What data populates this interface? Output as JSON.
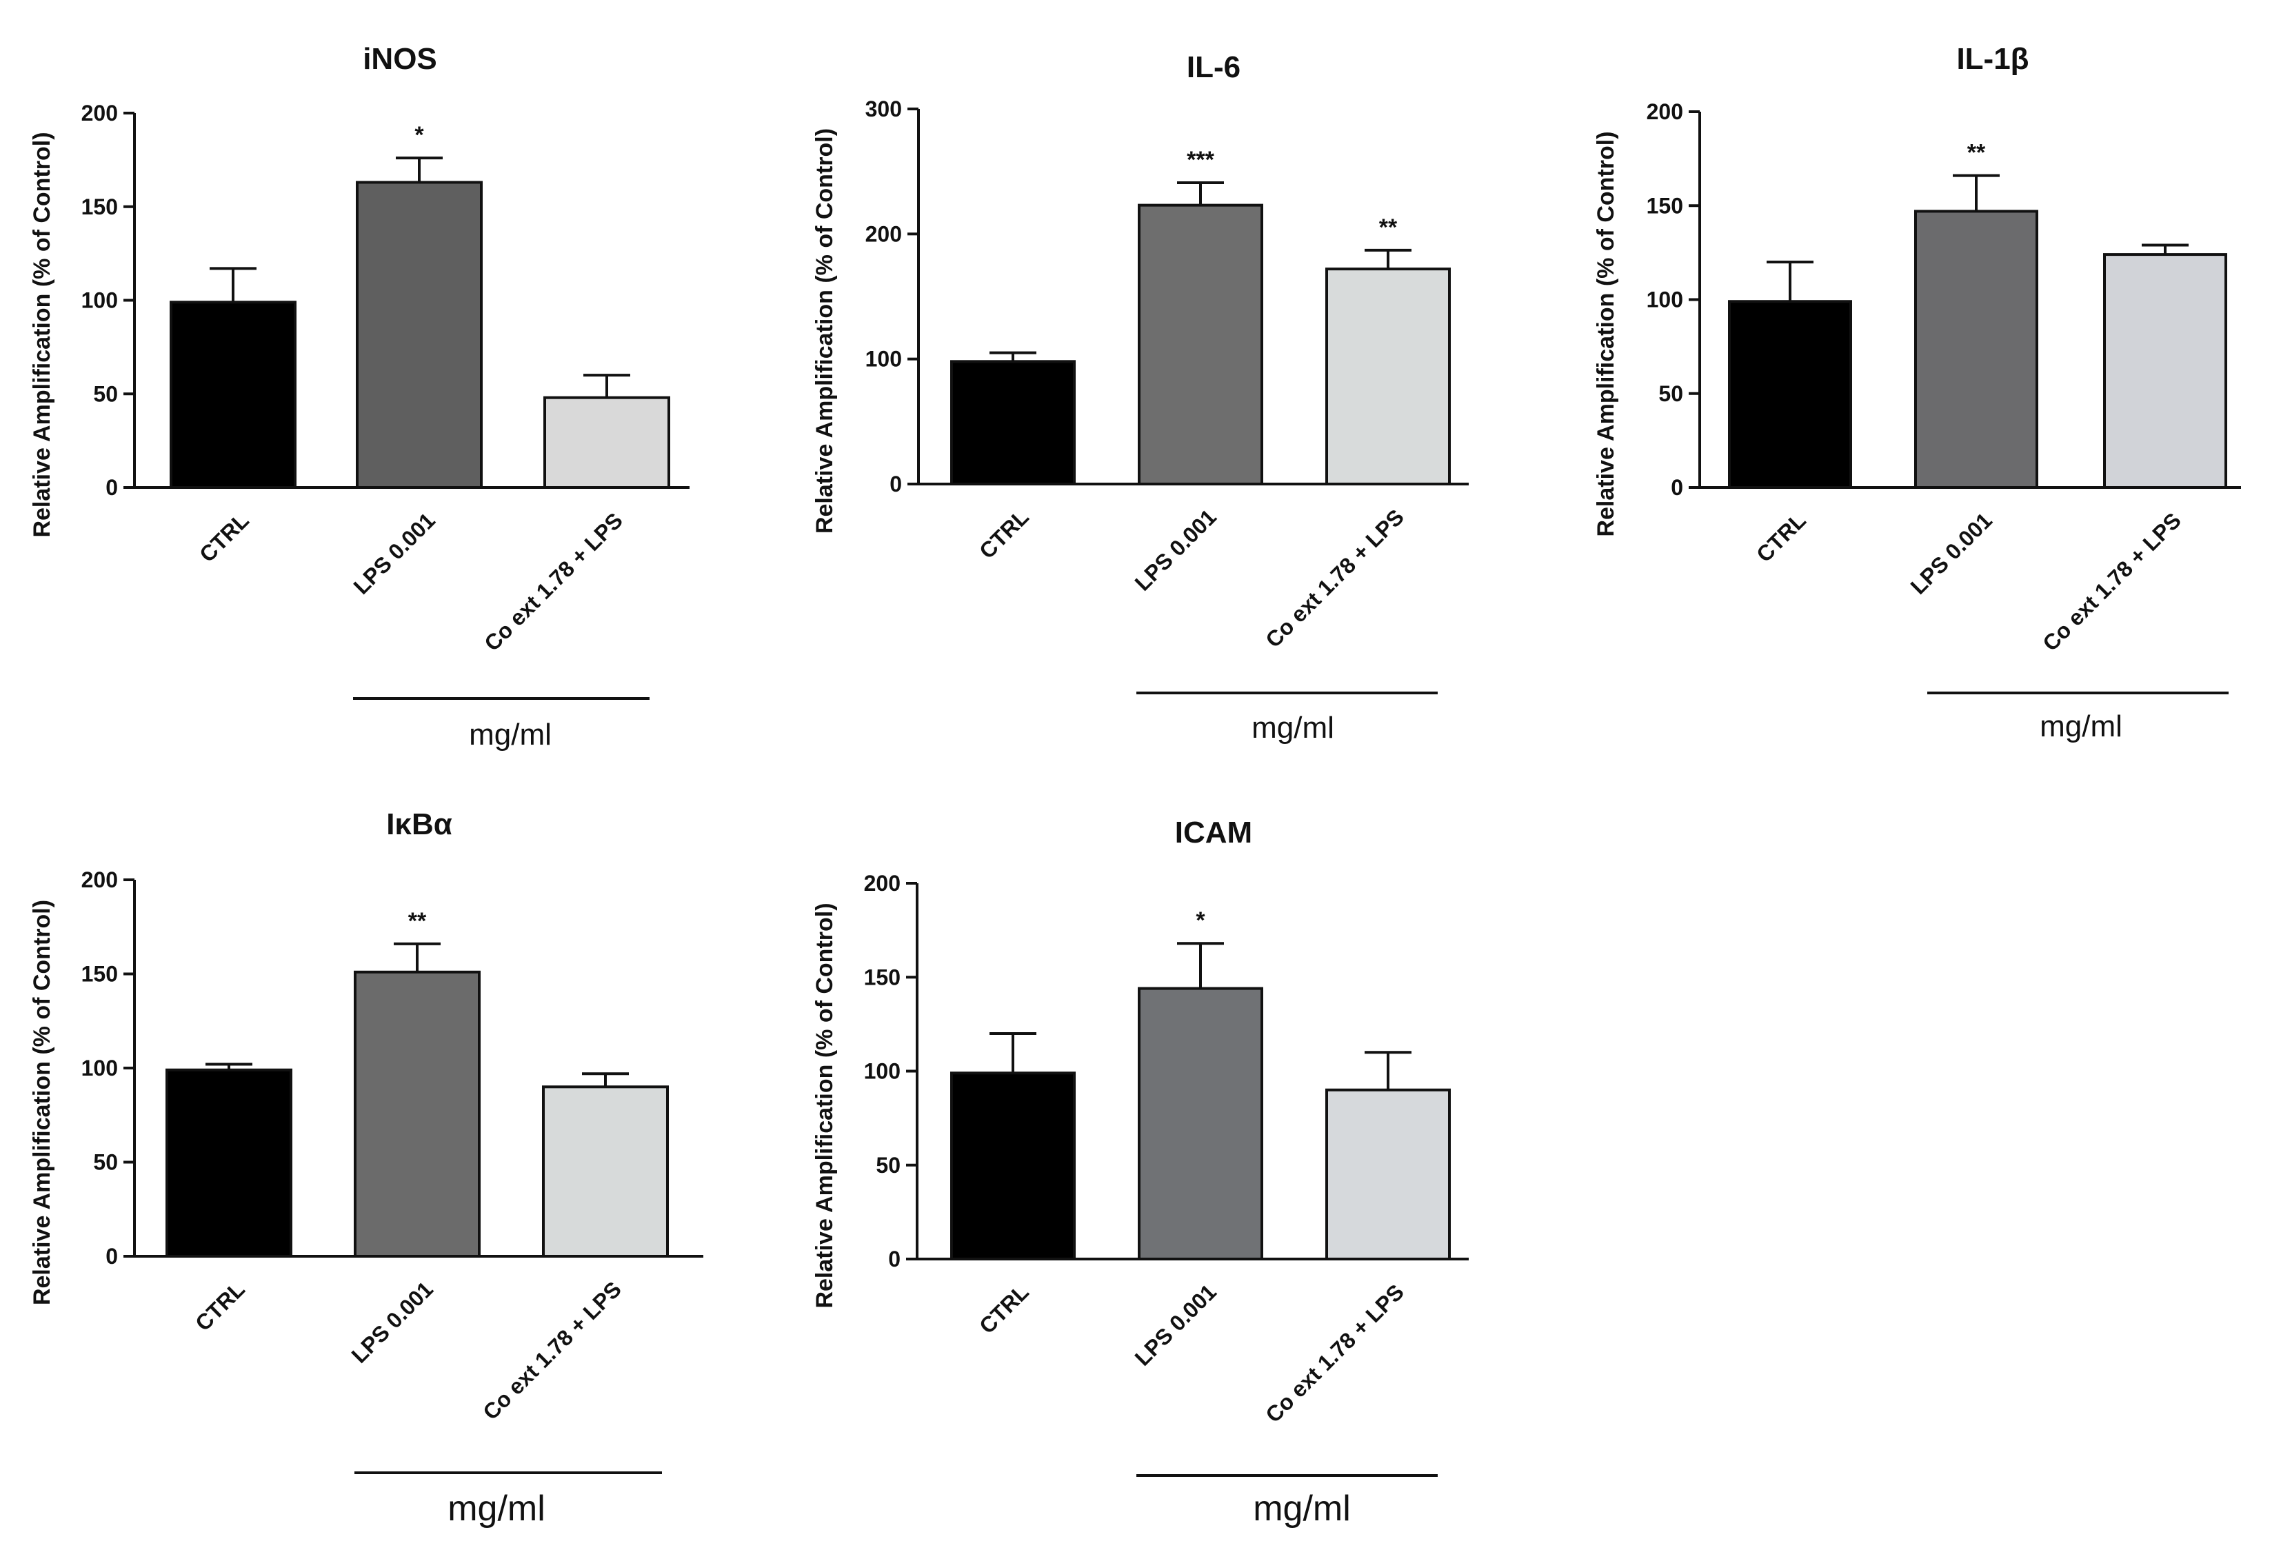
{
  "chart_data": [
    {
      "type": "bar",
      "title": "iNOS",
      "ylabel": "Relative Amplification (% of Control)",
      "xlabel": "",
      "ylim": [
        0,
        200
      ],
      "yticks": [
        "0",
        "50",
        "100",
        "150",
        "200"
      ],
      "categories": [
        "CTRL",
        "LPS 0.001",
        "Co ext 1.78 + LPS"
      ],
      "values": [
        99,
        163,
        48
      ],
      "errors": [
        18,
        13,
        12
      ],
      "colors": [
        "#000000",
        "#5f5f5f",
        "#d9d9d9"
      ],
      "significance": [
        "",
        "*",
        ""
      ],
      "unit_label": "mg/ml"
    },
    {
      "type": "bar",
      "title": "IL-6",
      "ylabel": "Relative Amplification (% of Control)",
      "xlabel": "",
      "ylim": [
        0,
        300
      ],
      "yticks": [
        "0",
        "100",
        "200",
        "300"
      ],
      "categories": [
        "CTRL",
        "LPS 0.001",
        "Co ext 1.78 + LPS"
      ],
      "values": [
        98,
        223,
        172
      ],
      "errors": [
        7,
        18,
        15
      ],
      "colors": [
        "#000000",
        "#6e6e6e",
        "#d8dbdb"
      ],
      "significance": [
        "",
        "***",
        "**"
      ],
      "unit_label": "mg/ml"
    },
    {
      "type": "bar",
      "title": "IL-1β",
      "ylabel": "Relative Amplification (% of Control)",
      "xlabel": "",
      "ylim": [
        0,
        200
      ],
      "yticks": [
        "0",
        "50",
        "100",
        "150",
        "200"
      ],
      "categories": [
        "CTRL",
        "LPS 0.001",
        "Co ext 1.78 + LPS"
      ],
      "values": [
        99,
        147,
        124
      ],
      "errors": [
        21,
        19,
        5
      ],
      "colors": [
        "#000000",
        "#6b6b6d",
        "#d1d3d8"
      ],
      "significance": [
        "",
        "**",
        ""
      ],
      "unit_label": "mg/ml"
    },
    {
      "type": "bar",
      "title": "IκBα",
      "ylabel": "Relative Amplification (% of Control)",
      "xlabel": "",
      "ylim": [
        0,
        200
      ],
      "yticks": [
        "0",
        "50",
        "100",
        "150",
        "200"
      ],
      "categories": [
        "CTRL",
        "LPS 0.001",
        "Co ext 1.78 + LPS"
      ],
      "values": [
        99,
        151,
        90
      ],
      "errors": [
        3,
        15,
        7
      ],
      "colors": [
        "#000000",
        "#6b6b6b",
        "#d7dada"
      ],
      "significance": [
        "",
        "**",
        ""
      ],
      "unit_label": "mg/ml"
    },
    {
      "type": "bar",
      "title": "ICAM",
      "ylabel": "Relative Amplification (% of Control)",
      "xlabel": "",
      "ylim": [
        0,
        200
      ],
      "yticks": [
        "0",
        "50",
        "100",
        "150",
        "200"
      ],
      "categories": [
        "CTRL",
        "LPS 0.001",
        "Co ext 1.78 + LPS"
      ],
      "values": [
        99,
        144,
        90
      ],
      "errors": [
        21,
        24,
        20
      ],
      "colors": [
        "#000000",
        "#707275",
        "#d6d9dc"
      ],
      "significance": [
        "",
        "*",
        ""
      ],
      "unit_label": "mg/ml"
    }
  ]
}
